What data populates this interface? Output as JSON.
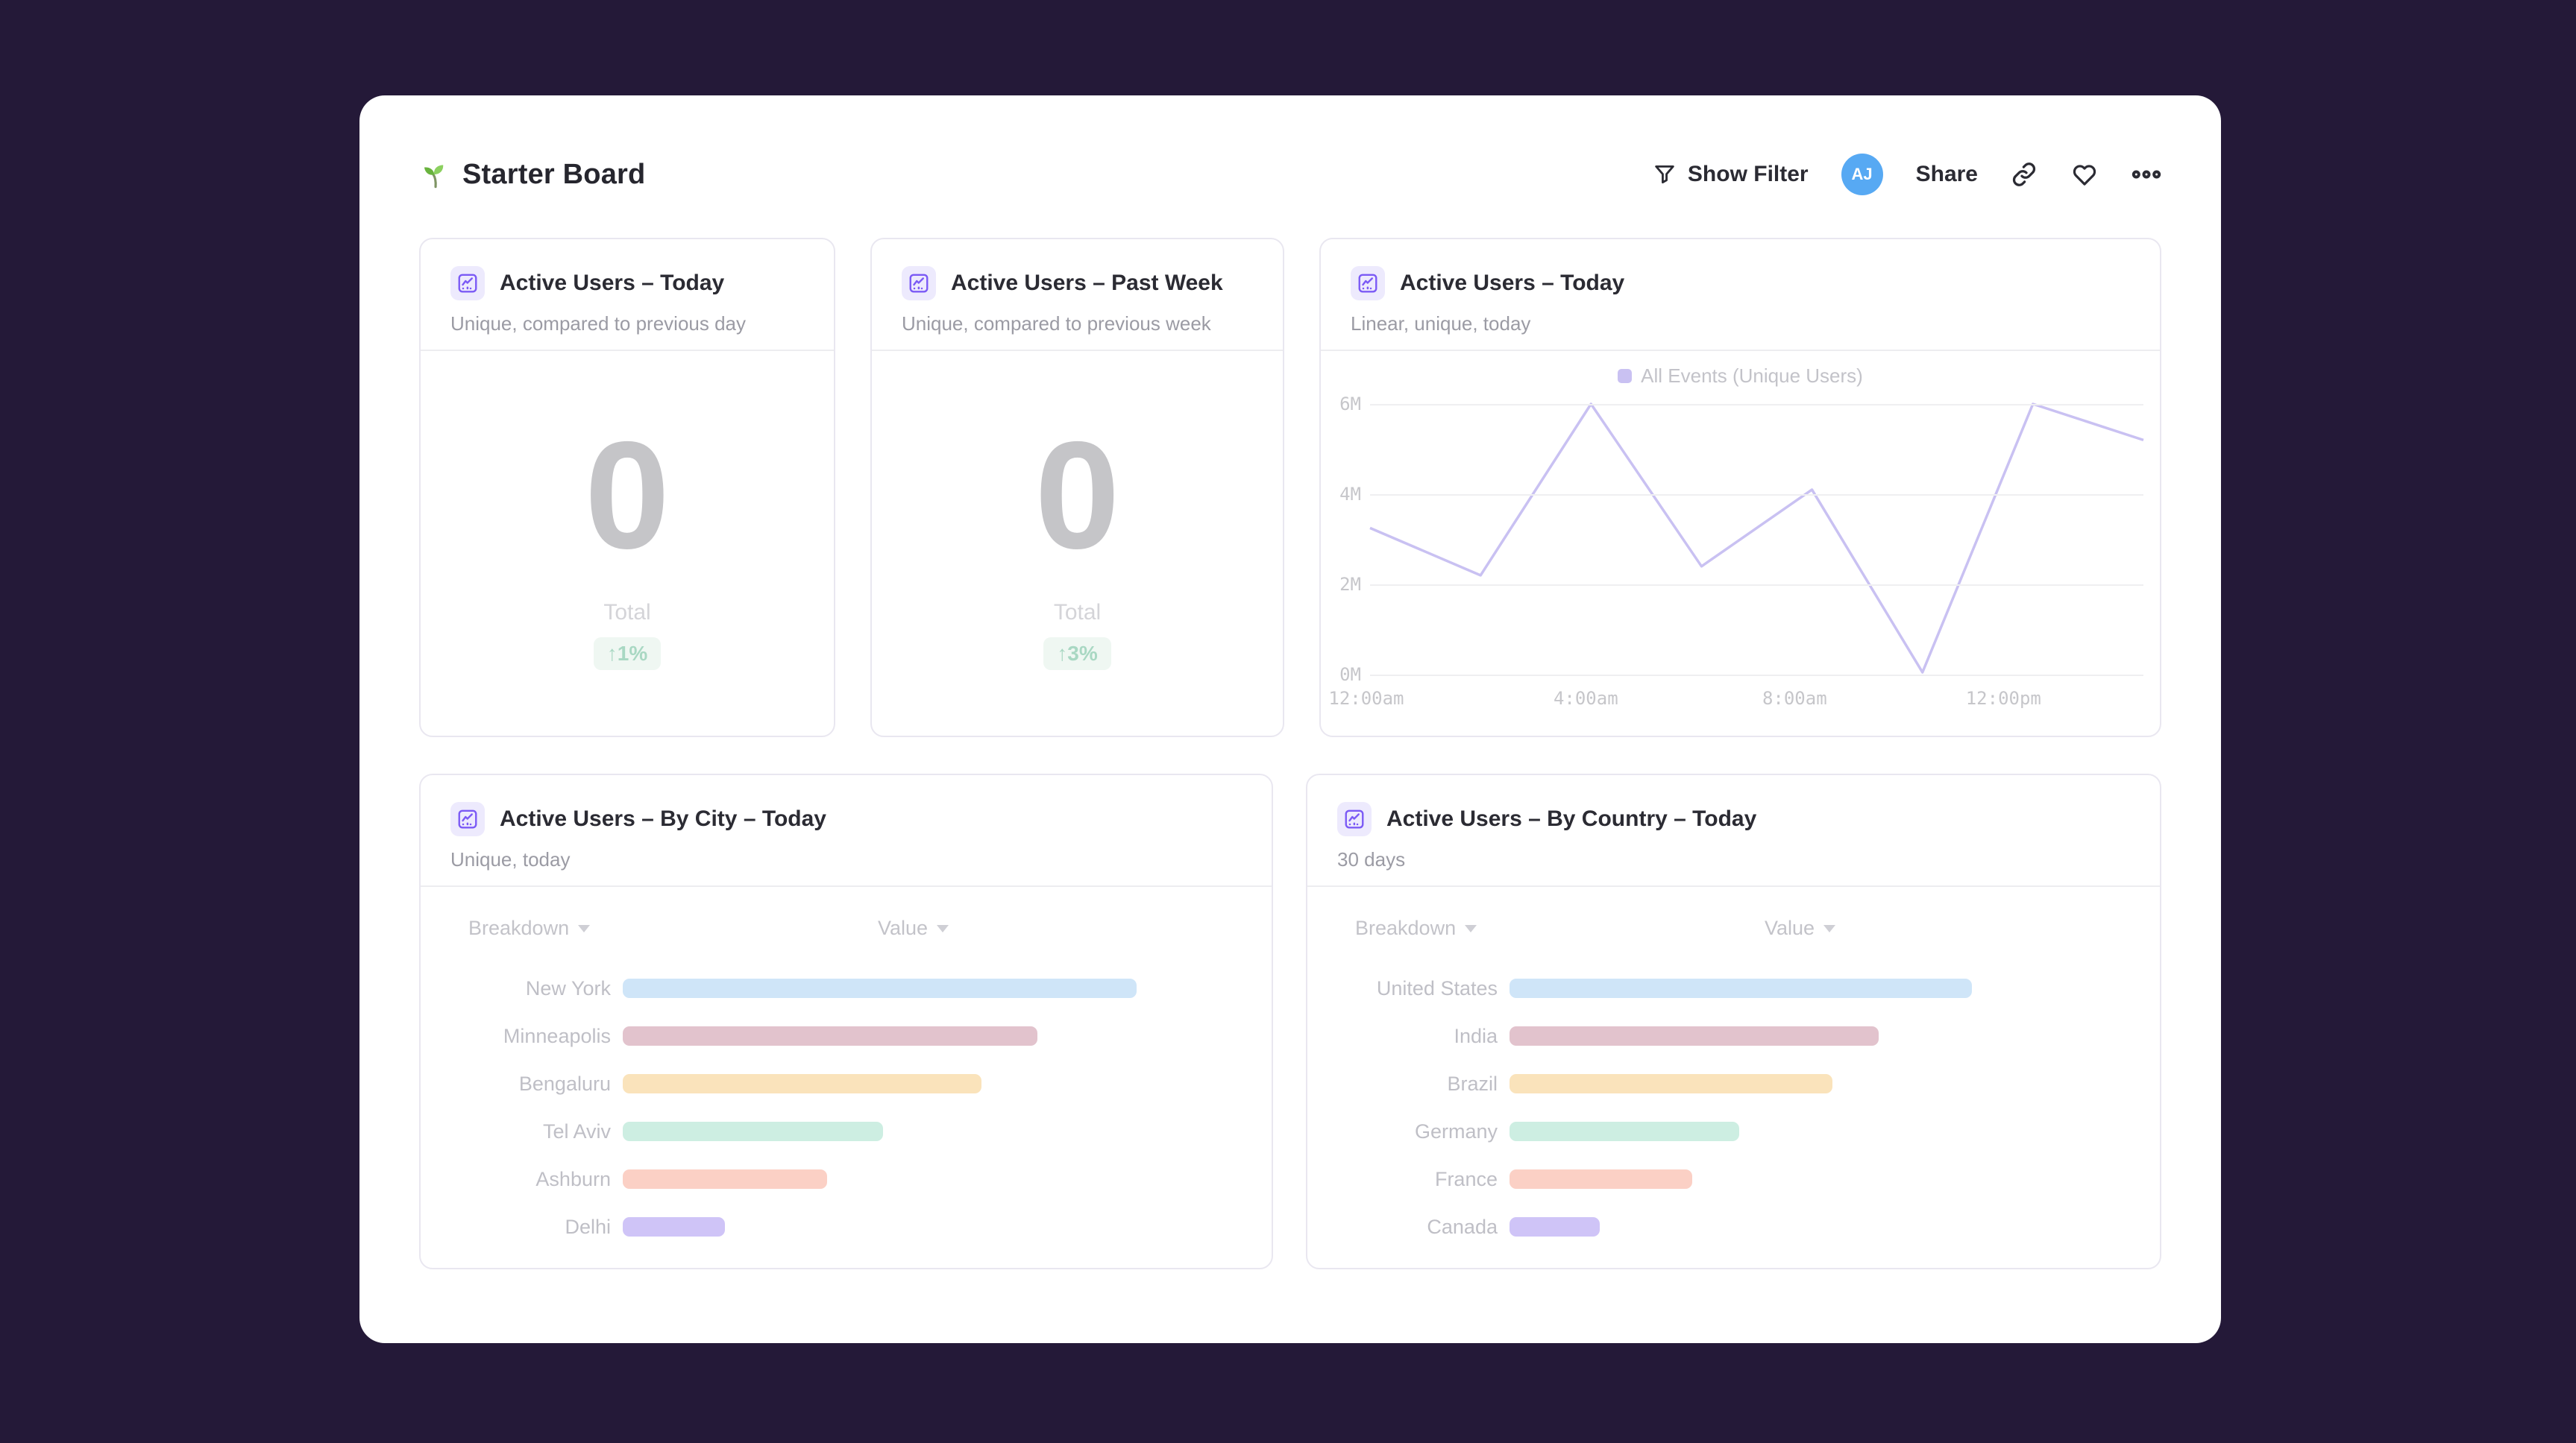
{
  "page": {
    "background": "#241938",
    "title": "Starter Board"
  },
  "toolbar": {
    "show_filter_label": "Show Filter",
    "avatar_initials": "AJ",
    "share_label": "Share",
    "avatar_color": "#57a9f3"
  },
  "cards": {
    "kpi_today": {
      "title": "Active Users – Today",
      "subtitle": "Unique, compared to previous day",
      "value": "0",
      "value_label": "Total",
      "delta": "↑1%"
    },
    "kpi_week": {
      "title": "Active Users – Past Week",
      "subtitle": "Unique, compared to previous week",
      "value": "0",
      "value_label": "Total",
      "delta": "↑3%"
    },
    "line": {
      "title": "Active Users – Today",
      "subtitle": "Linear, unique, today",
      "legend": "All Events (Unique Users)",
      "line_color": "#c9c1f2"
    },
    "city": {
      "title": "Active Users – By City – Today",
      "subtitle": "Unique, today",
      "col_breakdown": "Breakdown",
      "col_value": "Value"
    },
    "country": {
      "title": "Active Users – By Country – Today",
      "subtitle": "30 days",
      "col_breakdown": "Breakdown",
      "col_value": "Value"
    }
  },
  "chart_data": [
    {
      "id": "active-users-line",
      "type": "line",
      "title": "Active Users – Today",
      "series": [
        {
          "name": "All Events (Unique Users)",
          "values_millions": [
            3.25,
            2.2,
            6.0,
            2.4,
            4.1,
            0.05,
            6.0,
            5.2
          ]
        }
      ],
      "x_note": "8 evenly spaced points from 12:00am to ~3:00pm",
      "xticks": [
        {
          "label": "12:00am",
          "pct": 0
        },
        {
          "label": "4:00am",
          "pct": 27.9
        },
        {
          "label": "8:00am",
          "pct": 54.9
        },
        {
          "label": "12:00pm",
          "pct": 81.9
        }
      ],
      "yticks": [
        {
          "label": "6M",
          "value": 6
        },
        {
          "label": "4M",
          "value": 4
        },
        {
          "label": "2M",
          "value": 2
        },
        {
          "label": "0M",
          "value": 0
        }
      ],
      "ylim": [
        0,
        6
      ],
      "grid": true,
      "legend_position": "top-center"
    },
    {
      "id": "active-users-by-city",
      "type": "bar",
      "title": "Active Users – By City – Today",
      "orientation": "horizontal",
      "note": "no numeric axis shown; lengths are relative (% of track)",
      "categories": [
        "New York",
        "Minneapolis",
        "Bengaluru",
        "Tel Aviv",
        "Ashburn",
        "Delhi"
      ],
      "values_pct": [
        83,
        67,
        58,
        42,
        33,
        16.5
      ],
      "colors": [
        "#cfe5f8",
        "#e2c3cd",
        "#fae3bb",
        "#cdeee2",
        "#fbd0c5",
        "#cfc4f7"
      ]
    },
    {
      "id": "active-users-by-country",
      "type": "bar",
      "title": "Active Users – By Country – Today",
      "orientation": "horizontal",
      "note": "no numeric axis shown; lengths are relative (% of track)",
      "categories": [
        "United States",
        "India",
        "Brazil",
        "Germany",
        "France",
        "Canada"
      ],
      "values_pct": [
        74.5,
        59.5,
        52,
        37,
        29.5,
        14.5
      ],
      "colors": [
        "#cfe5f8",
        "#e2c3cd",
        "#fae3bb",
        "#cdeee2",
        "#fbd0c5",
        "#cfc4f7"
      ]
    }
  ]
}
